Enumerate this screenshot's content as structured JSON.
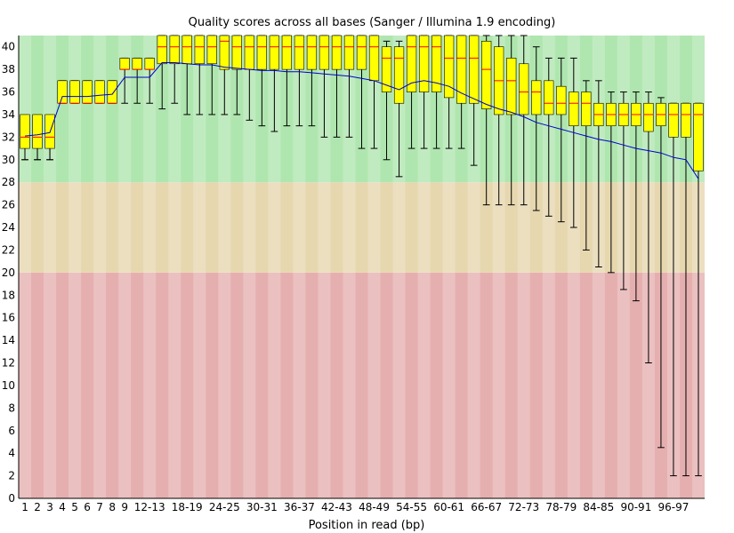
{
  "chart_data": {
    "type": "boxplot",
    "title": "Quality scores across all bases (Sanger / Illumina 1.9 encoding)",
    "xlabel": "Position in read (bp)",
    "ylabel": "",
    "ylim": [
      0,
      41
    ],
    "y_ticks": [
      0,
      2,
      4,
      6,
      8,
      10,
      12,
      14,
      16,
      18,
      20,
      22,
      24,
      26,
      28,
      30,
      32,
      34,
      36,
      38,
      40
    ],
    "zones": [
      {
        "name": "poor",
        "from": 0,
        "to": 20,
        "color": "#e6afaf"
      },
      {
        "name": "reasonable",
        "from": 20,
        "to": 28,
        "color": "#e6d7af"
      },
      {
        "name": "good",
        "from": 28,
        "to": 41,
        "color": "#afe6af"
      }
    ],
    "colors": {
      "box": "#ffff00",
      "median": "#ff0000",
      "mean_line": "#0000cc",
      "whisker": "#000000"
    },
    "categories": [
      "1",
      "2",
      "3",
      "4",
      "5",
      "6",
      "7",
      "8",
      "9",
      "10-11",
      "12-13",
      "14-15",
      "16-17",
      "18-19",
      "20-21",
      "22-23",
      "24-25",
      "26-27",
      "28-29",
      "30-31",
      "32-33",
      "34-35",
      "36-37",
      "38-39",
      "40-41",
      "42-43",
      "44-45",
      "46-47",
      "48-49",
      "50-51",
      "52-53",
      "54-55",
      "56-57",
      "58-59",
      "60-61",
      "62-63",
      "64-65",
      "66-67",
      "68-69",
      "70-71",
      "72-73",
      "74-75",
      "76-77",
      "78-79",
      "80-81",
      "82-83",
      "84-85",
      "86-87",
      "88-89",
      "90-91",
      "92-93",
      "94-95",
      "96-97",
      "98-99",
      "100-101"
    ],
    "x_tick_labels": [
      "1",
      "2",
      "3",
      "4",
      "5",
      "6",
      "7",
      "8",
      "9",
      "12-13",
      "18-19",
      "24-25",
      "30-31",
      "36-37",
      "42-43",
      "48-49",
      "54-55",
      "60-61",
      "66-67",
      "72-73",
      "78-79",
      "84-85",
      "90-91",
      "96-97"
    ],
    "series": [
      {
        "name": "upper_whisker",
        "values": [
          30,
          30,
          30,
          37,
          37,
          37,
          37,
          37,
          39,
          39,
          39,
          41,
          41,
          41,
          41,
          41,
          41,
          41,
          41,
          41,
          41,
          41,
          41,
          41,
          41,
          41,
          41,
          41,
          41,
          40.5,
          40.5,
          41,
          41,
          41,
          41,
          41,
          41,
          41,
          41,
          41,
          41,
          40,
          39,
          39,
          39,
          37,
          37,
          36,
          36,
          36,
          36,
          35.5,
          35,
          35,
          35
        ]
      },
      {
        "name": "upper_quartile",
        "values": [
          34,
          34,
          34,
          37,
          37,
          37,
          37,
          37,
          39,
          39,
          39,
          41,
          41,
          41,
          41,
          41,
          41,
          41,
          41,
          41,
          41,
          41,
          41,
          41,
          41,
          41,
          41,
          41,
          41,
          40,
          40,
          41,
          41,
          41,
          41,
          41,
          41,
          40.5,
          40,
          39,
          38.5,
          37,
          37,
          36.5,
          36,
          36,
          35,
          35,
          35,
          35,
          35,
          35,
          35,
          35,
          35
        ]
      },
      {
        "name": "median",
        "values": [
          32,
          32,
          32,
          35,
          35,
          35,
          35,
          35,
          38,
          38,
          38,
          40,
          40,
          40,
          40,
          40,
          40.5,
          40,
          40,
          40,
          40,
          40,
          40,
          40,
          40,
          40,
          40,
          40,
          40,
          39,
          39,
          40,
          40,
          40,
          39,
          39,
          39,
          38,
          37,
          37,
          36,
          36,
          35,
          35,
          35,
          35,
          34,
          34,
          34,
          34,
          34,
          34,
          34,
          34,
          34
        ]
      },
      {
        "name": "lower_quartile",
        "values": [
          31,
          31,
          31,
          35,
          35,
          35,
          35,
          35,
          38,
          38,
          38,
          38.5,
          38.5,
          38.5,
          38.5,
          38.5,
          38,
          38,
          38,
          38,
          38,
          38,
          38,
          38,
          38,
          38,
          38,
          38,
          37,
          36,
          35,
          36,
          36,
          36,
          35.5,
          35,
          35,
          34.5,
          34,
          34,
          34,
          34,
          34,
          34,
          33,
          33,
          33,
          33,
          33,
          33,
          32.5,
          33,
          32,
          32,
          29
        ]
      },
      {
        "name": "lower_whisker",
        "values": [
          30,
          30,
          30,
          35,
          35,
          35,
          35,
          35,
          35,
          35,
          35,
          34.5,
          35,
          34,
          34,
          34,
          34,
          34,
          33.5,
          33,
          32.5,
          33,
          33,
          33,
          32,
          32,
          32,
          31,
          31,
          30,
          28.5,
          31,
          31,
          31,
          31,
          31,
          29.5,
          26,
          26,
          26,
          26,
          25.5,
          25,
          24.5,
          24,
          22,
          20.5,
          20,
          18.5,
          17.5,
          12,
          4.5,
          2,
          2,
          2
        ]
      },
      {
        "name": "mean",
        "values": [
          32.1,
          32.2,
          32.4,
          35.6,
          35.6,
          35.6,
          35.7,
          35.8,
          37.3,
          37.3,
          37.3,
          38.6,
          38.6,
          38.5,
          38.4,
          38.4,
          38.2,
          38.1,
          38.0,
          37.9,
          37.9,
          37.8,
          37.8,
          37.7,
          37.6,
          37.5,
          37.4,
          37.2,
          37.0,
          36.6,
          36.2,
          36.8,
          37.0,
          36.8,
          36.5,
          35.9,
          35.4,
          34.9,
          34.5,
          34.2,
          33.8,
          33.3,
          33.0,
          32.7,
          32.4,
          32.1,
          31.8,
          31.6,
          31.3,
          31.0,
          30.8,
          30.6,
          30.2,
          30.0,
          28.3
        ]
      }
    ]
  }
}
